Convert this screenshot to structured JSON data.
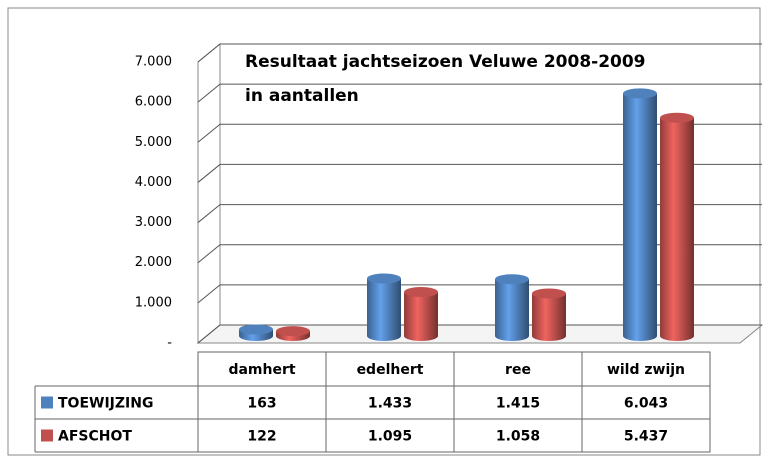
{
  "chart_data": {
    "type": "bar3d",
    "title": "Resultaat jachtseizoen Veluwe 2008-2009",
    "subtitle": "in aantallen",
    "categories": [
      "damhert",
      "edelhert",
      "ree",
      "wild zwijn"
    ],
    "series": [
      {
        "name": "TOEWIJZING",
        "color": "#4f81bd",
        "values": [
          163,
          1433,
          1415,
          6043
        ],
        "value_labels": [
          "163",
          "1.433",
          "1.415",
          "6.043"
        ]
      },
      {
        "name": "AFSCHOT",
        "color": "#c0504d",
        "values": [
          122,
          1095,
          1058,
          5437
        ],
        "value_labels": [
          "122",
          "1.095",
          "1.058",
          "5.437"
        ]
      }
    ],
    "ylim": [
      0,
      7000
    ],
    "yticks": [
      {
        "value": 0,
        "label": "-"
      },
      {
        "value": 1000,
        "label": "1.000"
      },
      {
        "value": 2000,
        "label": "2.000"
      },
      {
        "value": 3000,
        "label": "3.000"
      },
      {
        "value": 4000,
        "label": "4.000"
      },
      {
        "value": 5000,
        "label": "5.000"
      },
      {
        "value": 6000,
        "label": "6.000"
      },
      {
        "value": 7000,
        "label": "7.000"
      }
    ],
    "grid": true,
    "data_table": true
  }
}
